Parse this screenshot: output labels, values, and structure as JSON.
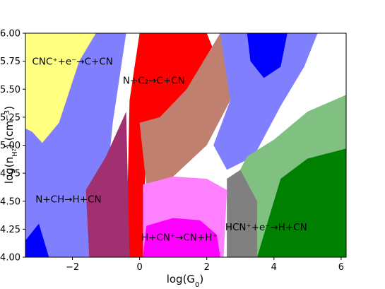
{
  "chart_data": {
    "type": "area",
    "title": "",
    "xlabel": "log(G0)",
    "ylabel": "log(nH2) (cm^-3)",
    "xlim": [
      -3.4,
      6.15
    ],
    "ylim": [
      4.0,
      6.0
    ],
    "grid": false,
    "xticks": [
      -2,
      0,
      2,
      4,
      6
    ],
    "yticks": [
      4.0,
      4.25,
      4.5,
      4.75,
      5.0,
      5.25,
      5.5,
      5.75,
      6.0
    ],
    "xtick_labels": [
      "−2",
      "0",
      "2",
      "4",
      "6"
    ],
    "ytick_labels": [
      "4.00",
      "4.25",
      "4.50",
      "4.75",
      "5.00",
      "5.25",
      "5.50",
      "5.75",
      "6.00"
    ],
    "colors": {
      "yellow": "#ffff80",
      "blue_light": "#8080ff",
      "blue": "#0000ff",
      "red": "#ff0000",
      "brown": "#c08070",
      "magenta": "#ff00ff",
      "magenta_light": "#ff80ff",
      "green_light": "#80c080",
      "green": "#008000",
      "gray": "#808080",
      "purple": "#a03070"
    },
    "regions": [
      {
        "label": "CNC⁺+e⁻→C+CN",
        "color": "yellow",
        "points": [
          [
            -3.4,
            6.0
          ],
          [
            -1.2,
            6.0
          ],
          [
            -1.6,
            5.6
          ],
          [
            -1.9,
            5.3
          ],
          [
            -2.5,
            5.05
          ],
          [
            -3.0,
            4.92
          ],
          [
            -3.4,
            5.0
          ]
        ]
      },
      {
        "label": "N+CH→H+CN",
        "color": "blue_light",
        "points": [
          [
            -3.4,
            4.0
          ],
          [
            -3.4,
            5.15
          ],
          [
            -3.2,
            5.12
          ],
          [
            -2.9,
            5.02
          ],
          [
            -2.4,
            5.2
          ],
          [
            -1.8,
            5.75
          ],
          [
            -1.3,
            6.0
          ],
          [
            -0.4,
            6.0
          ],
          [
            -0.8,
            5.2
          ],
          [
            -1.0,
            4.6
          ],
          [
            -1.2,
            4.0
          ]
        ]
      },
      {
        "label": "N+C2→C+CN",
        "color": "red",
        "points": [
          [
            -0.4,
            4.0
          ],
          [
            -0.3,
            5.4
          ],
          [
            0.0,
            6.0
          ],
          [
            2.0,
            6.0
          ],
          [
            2.2,
            5.85
          ],
          [
            1.8,
            5.6
          ],
          [
            1.2,
            5.3
          ],
          [
            0.6,
            5.2
          ],
          [
            0.2,
            5.15
          ],
          [
            0.1,
            4.0
          ]
        ]
      },
      {
        "label": "",
        "color": "brown",
        "points": [
          [
            0.0,
            5.2
          ],
          [
            0.6,
            5.25
          ],
          [
            1.4,
            5.5
          ],
          [
            2.4,
            6.0
          ],
          [
            3.2,
            6.0
          ],
          [
            2.7,
            5.4
          ],
          [
            2.0,
            5.0
          ],
          [
            1.0,
            4.72
          ],
          [
            0.2,
            4.65
          ]
        ]
      },
      {
        "label": "",
        "color": "blue_light",
        "points": [
          [
            2.4,
            6.0
          ],
          [
            5.3,
            6.0
          ],
          [
            4.9,
            5.7
          ],
          [
            4.2,
            5.35
          ],
          [
            3.4,
            4.9
          ],
          [
            2.6,
            4.78
          ],
          [
            2.2,
            5.0
          ],
          [
            2.7,
            5.4
          ]
        ]
      },
      {
        "label": "",
        "color": "blue",
        "points": [
          [
            3.2,
            6.0
          ],
          [
            4.4,
            6.0
          ],
          [
            4.2,
            5.7
          ],
          [
            3.7,
            5.6
          ],
          [
            3.3,
            5.75
          ]
        ]
      },
      {
        "label": "H+CN⁺→CN+H⁺",
        "color": "magenta_light",
        "points": [
          [
            0.1,
            4.0
          ],
          [
            0.1,
            4.65
          ],
          [
            1.0,
            4.72
          ],
          [
            2.0,
            4.7
          ],
          [
            2.6,
            4.6
          ],
          [
            2.5,
            4.0
          ]
        ]
      },
      {
        "label": "",
        "color": "magenta",
        "points": [
          [
            0.1,
            4.0
          ],
          [
            0.2,
            4.28
          ],
          [
            1.0,
            4.35
          ],
          [
            1.8,
            4.33
          ],
          [
            2.3,
            4.2
          ],
          [
            2.4,
            4.0
          ]
        ]
      },
      {
        "label": "HCN⁺+e⁻→H+CN",
        "color": "green_light",
        "points": [
          [
            2.6,
            4.0
          ],
          [
            2.6,
            4.55
          ],
          [
            3.2,
            4.9
          ],
          [
            4.0,
            5.05
          ],
          [
            5.0,
            5.3
          ],
          [
            6.15,
            5.45
          ],
          [
            6.15,
            4.0
          ]
        ]
      },
      {
        "label": "",
        "color": "green",
        "points": [
          [
            3.5,
            4.0
          ],
          [
            4.2,
            4.7
          ],
          [
            5.0,
            4.88
          ],
          [
            6.15,
            4.97
          ],
          [
            6.15,
            4.0
          ]
        ]
      },
      {
        "label": "",
        "color": "gray",
        "points": [
          [
            2.6,
            4.0
          ],
          [
            2.6,
            4.7
          ],
          [
            3.0,
            4.78
          ],
          [
            3.5,
            4.5
          ],
          [
            3.5,
            4.0
          ]
        ]
      },
      {
        "label": "",
        "color": "blue",
        "points": [
          [
            -3.4,
            4.0
          ],
          [
            -3.4,
            4.15
          ],
          [
            -3.0,
            4.3
          ],
          [
            -2.7,
            4.0
          ]
        ]
      },
      {
        "label": "",
        "color": "purple",
        "points": [
          [
            -1.5,
            4.0
          ],
          [
            -1.6,
            4.6
          ],
          [
            -1.0,
            4.9
          ],
          [
            -0.4,
            5.3
          ],
          [
            -0.3,
            4.0
          ]
        ]
      }
    ],
    "annotations": [
      {
        "text": "CNC⁺+e⁻→C+CN",
        "x": -3.2,
        "y": 5.75
      },
      {
        "text": "N+C₂→C+CN",
        "x": -0.5,
        "y": 5.58
      },
      {
        "text": "N+CH→H+CN",
        "x": -3.1,
        "y": 4.52
      },
      {
        "text": "H+CN⁺→CN+H⁺",
        "x": 0.05,
        "y": 4.18
      },
      {
        "text": "HCN⁺+e⁻→H+CN",
        "x": 2.55,
        "y": 4.27
      }
    ]
  }
}
